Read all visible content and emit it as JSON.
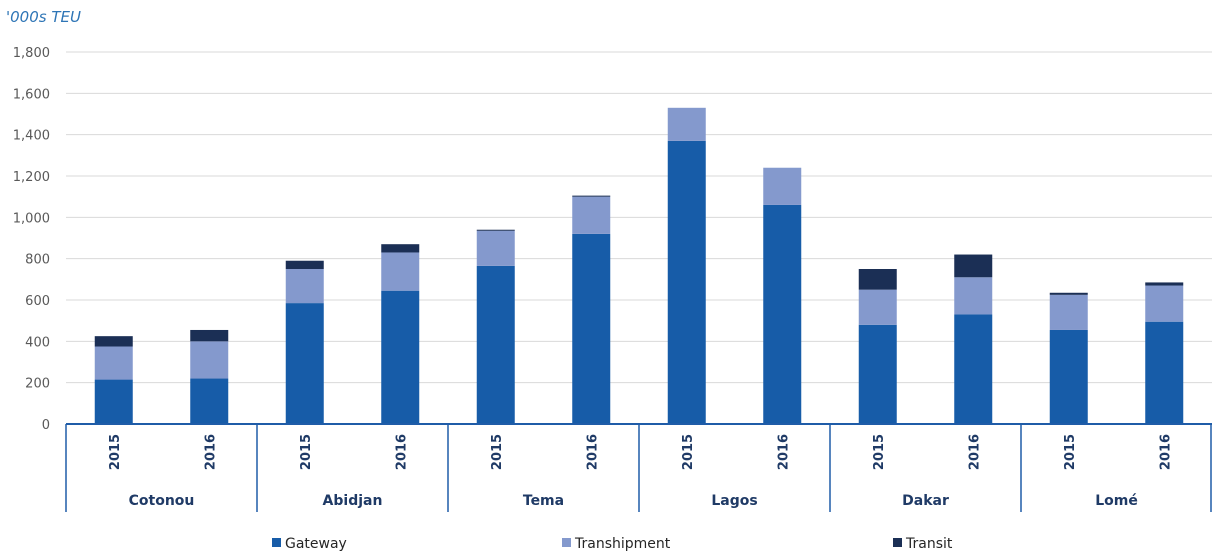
{
  "chart_data": {
    "type": "bar",
    "stacked": true,
    "unit_label": "'000s TEU",
    "groups": [
      "Cotonou",
      "Abidjan",
      "Tema",
      "Lagos",
      "Dakar",
      "Lomé"
    ],
    "years": [
      "2015",
      "2016"
    ],
    "categories": [
      "Cotonou 2015",
      "Cotonou 2016",
      "Abidjan 2015",
      "Abidjan 2016",
      "Tema 2015",
      "Tema 2016",
      "Lagos 2015",
      "Lagos 2016",
      "Dakar 2015",
      "Dakar 2016",
      "Lomé 2015",
      "Lomé 2016"
    ],
    "series": [
      {
        "name": "Gateway",
        "color": "#175ca8",
        "values": [
          215,
          220,
          585,
          645,
          765,
          920,
          1370,
          1060,
          480,
          530,
          455,
          495
        ]
      },
      {
        "name": "Transhipment",
        "color": "#8499cd",
        "values": [
          160,
          180,
          165,
          185,
          170,
          180,
          160,
          180,
          170,
          180,
          170,
          175
        ]
      },
      {
        "name": "Transit",
        "color": "#1b2f55",
        "values": [
          50,
          55,
          40,
          40,
          5,
          5,
          0,
          0,
          100,
          110,
          10,
          15
        ]
      }
    ],
    "ylim": [
      0,
      1800
    ],
    "yticks": [
      0,
      200,
      400,
      600,
      800,
      1000,
      1200,
      1400,
      1600,
      1800
    ],
    "ytick_labels": [
      "0",
      "200",
      "400",
      "600",
      "800",
      "1,000",
      "1,200",
      "1,400",
      "1,600",
      "1,800"
    ],
    "grid": true,
    "legend_position": "bottom",
    "colors": {
      "unit_label": "#2e75b6",
      "axis": "#1f5ca8",
      "grid": "#d9d9d9"
    }
  }
}
